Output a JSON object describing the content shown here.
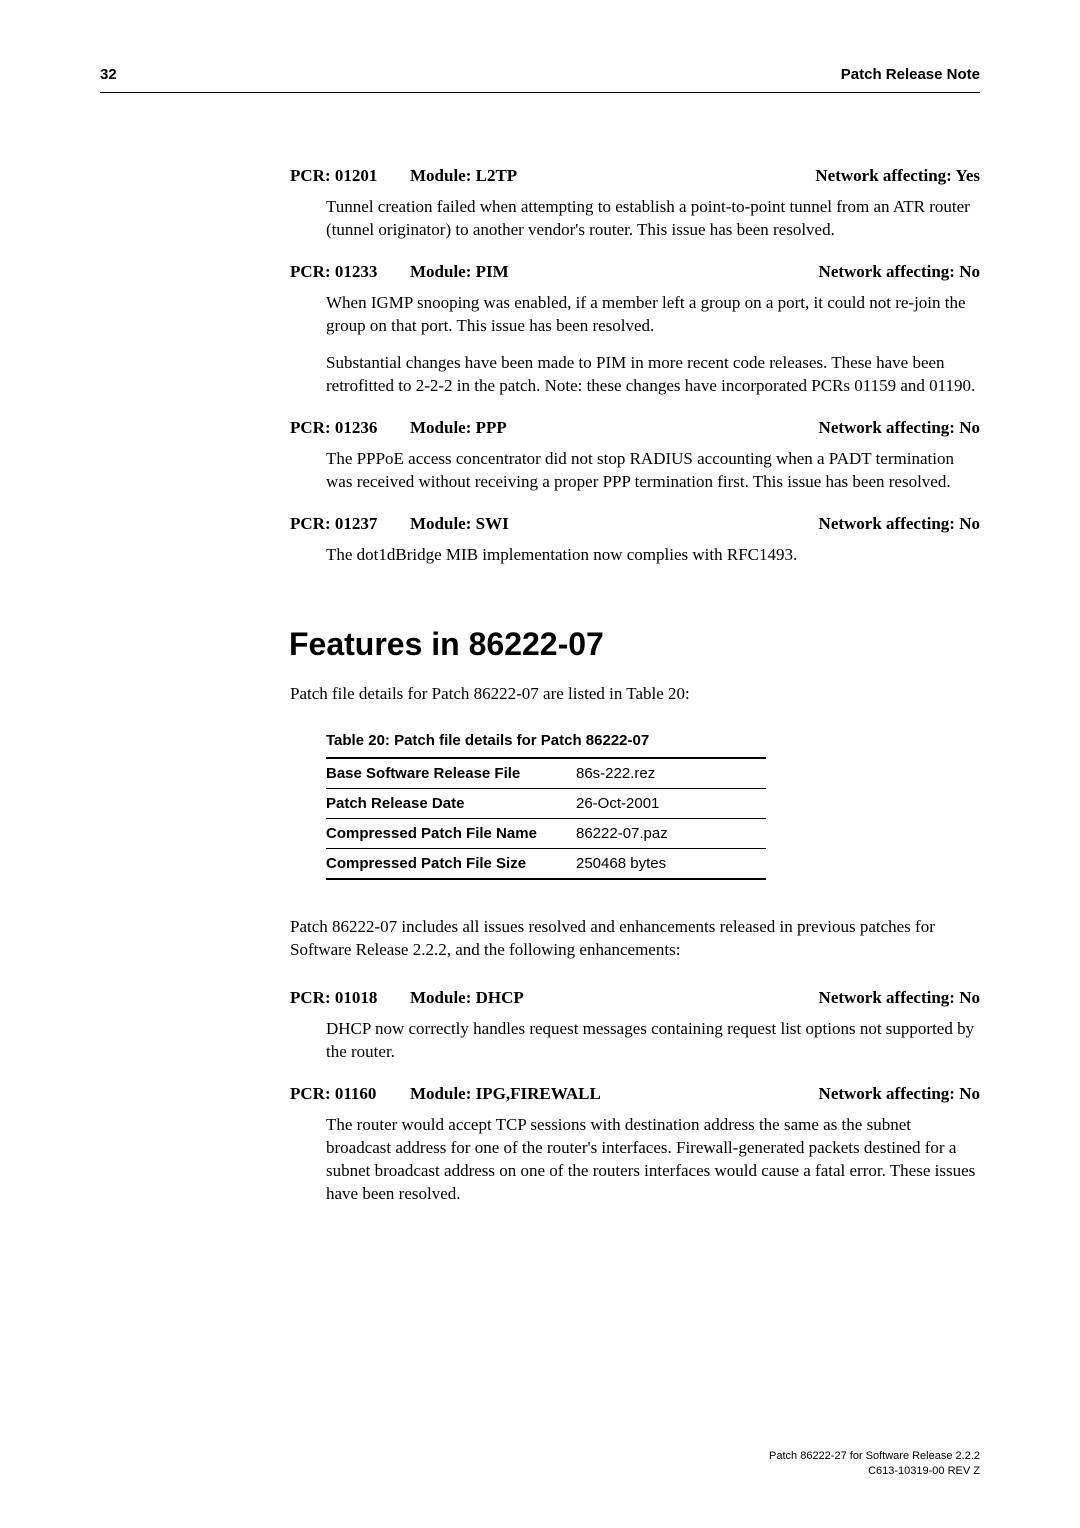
{
  "header": {
    "page_number": "32",
    "title": "Patch Release Note"
  },
  "pcr_entries_top": [
    {
      "id": "PCR: 01201",
      "module": "Module: L2TP",
      "network": "Network affecting: Yes",
      "paragraphs": [
        "Tunnel creation failed when attempting to establish a point-to-point tunnel from an ATR router (tunnel originator) to another vendor's router. This issue has been resolved."
      ]
    },
    {
      "id": "PCR: 01233",
      "module": "Module: PIM",
      "network": "Network affecting: No",
      "paragraphs": [
        "When IGMP snooping was enabled, if a member left a group on a port, it could not re-join the group on that port. This issue has been resolved.",
        "Substantial changes have been made to PIM in more recent code releases. These have been retrofitted to 2-2-2 in the patch. Note: these changes have incorporated PCRs 01159 and 01190."
      ]
    },
    {
      "id": "PCR: 01236",
      "module": "Module: PPP",
      "network": "Network affecting: No",
      "paragraphs": [
        "The PPPoE access concentrator did not stop RADIUS accounting when a PADT termination was received without receiving a proper PPP termination first. This issue has been resolved."
      ]
    },
    {
      "id": "PCR: 01237",
      "module": "Module: SWI",
      "network": "Network affecting: No",
      "paragraphs": [
        "The dot1dBridge MIB implementation now complies with RFC1493."
      ]
    }
  ],
  "section": {
    "heading": "Features in 86222-07",
    "intro": "Patch file details for Patch 86222-07 are listed in Table 20:"
  },
  "table": {
    "caption": "Table 20: Patch file details for Patch 86222-07",
    "rows": [
      {
        "label": "Base Software Release File",
        "value": "86s-222.rez"
      },
      {
        "label": "Patch Release Date",
        "value": "26-Oct-2001"
      },
      {
        "label": "Compressed Patch File Name",
        "value": "86222-07.paz"
      },
      {
        "label": "Compressed Patch File Size",
        "value": "250468 bytes"
      }
    ]
  },
  "post_table_text": "Patch 86222-07 includes all issues resolved and enhancements released in previous patches for Software Release 2.2.2, and the following enhancements:",
  "pcr_entries_bottom": [
    {
      "id": "PCR: 01018",
      "module": "Module: DHCP",
      "network": "Network affecting: No",
      "paragraphs": [
        "DHCP now correctly handles request messages containing request list options not supported by the router."
      ]
    },
    {
      "id": "PCR: 01160",
      "module": "Module: IPG,FIREWALL",
      "network": "Network affecting: No",
      "paragraphs": [
        "The router would accept TCP sessions with destination address the same as the subnet broadcast address for one of the router's interfaces. Firewall-generated packets destined for a subnet broadcast address on one of the routers interfaces would cause a fatal error. These issues have been resolved."
      ]
    }
  ],
  "footer": {
    "line1": "Patch 86222-27 for Software Release 2.2.2",
    "line2": "C613-10319-00 REV Z"
  }
}
